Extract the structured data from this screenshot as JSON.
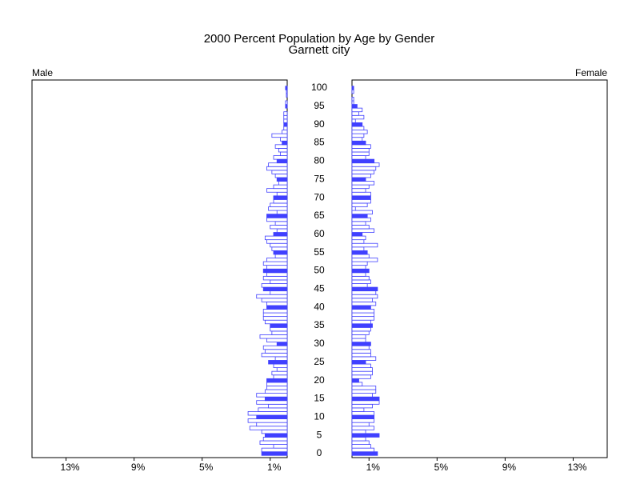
{
  "chart_data": {
    "type": "pyramid",
    "title": "2000 Percent Population by Age by Gender",
    "subtitle": "Garnett city",
    "categories": [
      "0",
      null,
      null,
      null,
      null,
      "5",
      null,
      null,
      null,
      null,
      "10",
      null,
      null,
      null,
      null,
      "15",
      null,
      null,
      null,
      null,
      "20",
      null,
      null,
      null,
      null,
      "25",
      null,
      null,
      null,
      null,
      "30",
      null,
      null,
      null,
      null,
      "35",
      null,
      null,
      null,
      null,
      "40",
      null,
      null,
      null,
      null,
      "45",
      null,
      null,
      null,
      null,
      "50",
      null,
      null,
      null,
      null,
      "55",
      null,
      null,
      null,
      null,
      "60",
      null,
      null,
      null,
      null,
      "65",
      null,
      null,
      null,
      null,
      "70",
      null,
      null,
      null,
      null,
      "75",
      null,
      null,
      null,
      null,
      "80",
      null,
      null,
      null,
      null,
      "85",
      null,
      null,
      null,
      null,
      "90",
      null,
      null,
      null,
      null,
      "95",
      null,
      null,
      null,
      null,
      "100"
    ],
    "series": [
      {
        "name": "Male",
        "color": "#4040ff",
        "values": [
          1.5,
          1.5,
          0.8,
          1.6,
          1.4,
          1.3,
          1.5,
          2.2,
          1.8,
          2.3,
          1.8,
          2.3,
          1.7,
          1.1,
          1.8,
          1.3,
          1.8,
          1.3,
          1.2,
          1.2,
          1.2,
          0.8,
          0.9,
          0.6,
          0.8,
          1.1,
          0.7,
          1.5,
          1.3,
          1.4,
          0.6,
          1.2,
          1.6,
          0.9,
          1.0,
          1.0,
          1.3,
          1.4,
          1.4,
          1.4,
          1.2,
          1.2,
          1.5,
          1.8,
          1.0,
          1.4,
          1.5,
          1.0,
          1.4,
          1.2,
          1.4,
          1.2,
          1.4,
          1.2,
          0.7,
          0.8,
          0.9,
          1.0,
          1.2,
          1.3,
          0.8,
          0.6,
          1.0,
          0.7,
          1.2,
          1.2,
          0.6,
          1.1,
          1.0,
          0.8,
          0.8,
          0.6,
          1.2,
          0.8,
          0.5,
          0.6,
          0.7,
          0.9,
          1.2,
          1.1,
          0.6,
          0.8,
          0.4,
          0.5,
          0.7,
          0.3,
          0.4,
          0.9,
          0.3,
          0.2,
          0.2,
          0.2,
          0.2,
          0.2,
          0,
          0.1,
          0.1,
          0,
          0.05,
          0.05,
          0.1
        ]
      },
      {
        "name": "Female",
        "color": "#4040ff",
        "values": [
          1.5,
          1.3,
          1.1,
          1.0,
          0.8,
          1.6,
          0.8,
          1.3,
          1.0,
          1.3,
          1.3,
          1.3,
          0.7,
          1.2,
          1.6,
          1.6,
          1.2,
          1.4,
          1.4,
          0.6,
          0.4,
          1.1,
          1.2,
          1.2,
          1.1,
          0.8,
          1.4,
          1.1,
          1.1,
          1.0,
          1.1,
          0.8,
          0.8,
          1.0,
          1.1,
          1.2,
          1.1,
          1.3,
          1.3,
          1.3,
          1.1,
          1.4,
          1.2,
          1.5,
          1.4,
          1.5,
          0.9,
          1.1,
          1.0,
          0.8,
          1.0,
          0.8,
          0.9,
          1.5,
          1.0,
          0.9,
          0.7,
          1.5,
          0.7,
          0.8,
          0.6,
          1.3,
          1.0,
          0.8,
          1.1,
          0.9,
          1.2,
          0.2,
          0.9,
          1.1,
          1.1,
          1.1,
          0.8,
          1.0,
          1.3,
          0.8,
          1.1,
          1.3,
          1.4,
          1.6,
          1.3,
          0.8,
          1.0,
          1.0,
          1.1,
          0.8,
          0.6,
          0.7,
          0.9,
          0.7,
          0.6,
          0.2,
          0.7,
          0.4,
          0.6,
          0.3,
          0.1,
          0.1,
          0,
          0.1,
          0.1
        ]
      }
    ],
    "xlim": [
      0,
      15
    ],
    "xticks": [
      {
        "value": 1,
        "label": "1%"
      },
      {
        "value": 5,
        "label": "5%"
      },
      {
        "value": 9,
        "label": "9%"
      },
      {
        "value": 13,
        "label": "13%"
      }
    ]
  }
}
